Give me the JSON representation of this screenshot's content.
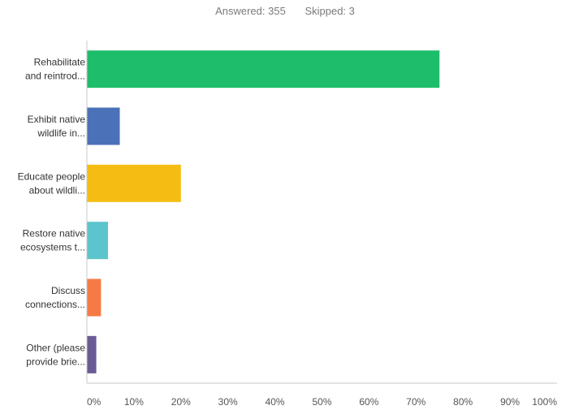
{
  "header": {
    "answered_label": "Answered:",
    "answered_value": "355",
    "skipped_label": "Skipped:",
    "skipped_value": "3"
  },
  "chart_data": {
    "type": "bar",
    "orientation": "horizontal",
    "categories": [
      [
        "Rehabilitate",
        "and reintrod..."
      ],
      [
        "Exhibit native",
        "wildlife in..."
      ],
      [
        "Educate people",
        "about wildli..."
      ],
      [
        "Restore native",
        "ecosystems t..."
      ],
      [
        "Discuss",
        "connections..."
      ],
      [
        "Other (please",
        "provide brie..."
      ]
    ],
    "values": [
      75,
      7,
      20,
      4.5,
      3,
      2
    ],
    "value_unit": "%",
    "xlim": [
      0,
      100
    ],
    "x_ticks": [
      "0%",
      "10%",
      "20%",
      "30%",
      "40%",
      "50%",
      "60%",
      "70%",
      "80%",
      "90%",
      "100%"
    ],
    "colors": [
      "#1ebd6b",
      "#4b72b8",
      "#f5bd14",
      "#5cc4cc",
      "#f57a45",
      "#6b5b95"
    ],
    "grid": false,
    "legend": "none"
  }
}
